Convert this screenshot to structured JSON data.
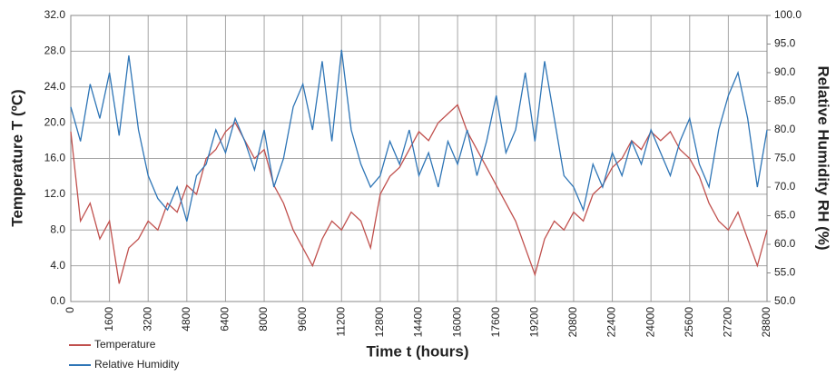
{
  "chart_data": {
    "type": "line",
    "x_label": "Time t (hours)",
    "y_label": "Temperature T (ºC)",
    "y2_label": "Relative Humidity RH (%)",
    "x": [
      0,
      400,
      800,
      1200,
      1600,
      2000,
      2400,
      2800,
      3200,
      3600,
      4000,
      4400,
      4800,
      5200,
      5600,
      6000,
      6400,
      6800,
      7200,
      7600,
      8000,
      8400,
      8800,
      9200,
      9600,
      10000,
      10400,
      10800,
      11200,
      11600,
      12000,
      12400,
      12800,
      13200,
      13600,
      14000,
      14400,
      14800,
      15200,
      15600,
      16000,
      16400,
      16800,
      17200,
      17600,
      18000,
      18400,
      18800,
      19200,
      19600,
      20000,
      20400,
      20800,
      21200,
      21600,
      22000,
      22400,
      22800,
      23200,
      23600,
      24000,
      24400,
      24800,
      25200,
      25600,
      26000,
      26400,
      26800,
      27200,
      27600,
      28000,
      28400,
      28800
    ],
    "series": [
      {
        "name": "Temperature",
        "color": "#c0504d",
        "values": [
          19,
          9,
          11,
          7,
          9,
          2,
          6,
          7,
          9,
          8,
          11,
          10,
          13,
          12,
          16,
          17,
          19,
          20,
          18,
          16,
          17,
          13,
          11,
          8,
          6,
          4,
          7,
          9,
          8,
          10,
          9,
          6,
          12,
          14,
          15,
          17,
          19,
          18,
          20,
          21,
          22,
          19,
          17,
          15,
          13,
          11,
          9,
          6,
          3,
          7,
          9,
          8,
          10,
          9,
          12,
          13,
          15,
          16,
          18,
          17,
          19,
          18,
          19,
          17,
          16,
          14,
          11,
          9,
          8,
          10,
          7,
          4,
          8
        ]
      },
      {
        "name": "Relative Humidity",
        "color": "#2e75b6",
        "axis": "y2",
        "values": [
          84,
          78,
          88,
          82,
          90,
          79,
          93,
          80,
          72,
          68,
          66,
          70,
          64,
          72,
          74,
          80,
          76,
          82,
          78,
          73,
          80,
          70,
          75,
          84,
          88,
          80,
          92,
          78,
          94,
          80,
          74,
          70,
          72,
          78,
          74,
          80,
          72,
          76,
          70,
          78,
          74,
          80,
          72,
          78,
          86,
          76,
          80,
          90,
          78,
          92,
          82,
          72,
          70,
          66,
          74,
          70,
          76,
          72,
          78,
          74,
          80,
          76,
          72,
          78,
          82,
          74,
          70,
          80,
          86,
          90,
          82,
          70,
          80
        ]
      }
    ],
    "xlim": [
      0,
      28800
    ],
    "xticks": [
      0,
      1600,
      3200,
      4800,
      6400,
      8000,
      9600,
      11200,
      12800,
      14400,
      16000,
      17600,
      19200,
      20800,
      22400,
      24000,
      25600,
      27200,
      28800
    ],
    "ylim": [
      0,
      32
    ],
    "yticks": [
      {
        "value": 0,
        "label": "0.0"
      },
      {
        "value": 4,
        "label": "4.0"
      },
      {
        "value": 8,
        "label": "8.0"
      },
      {
        "value": 12,
        "label": "12.0"
      },
      {
        "value": 16,
        "label": "16.0"
      },
      {
        "value": 20,
        "label": "20.0"
      },
      {
        "value": 24,
        "label": "24.0"
      },
      {
        "value": 28,
        "label": "28.0"
      },
      {
        "value": 32,
        "label": "32.0"
      }
    ],
    "y2lim": [
      50,
      100
    ],
    "y2ticks": [
      {
        "value": 50,
        "label": "50.0"
      },
      {
        "value": 55,
        "label": "55.0"
      },
      {
        "value": 60,
        "label": "60.0"
      },
      {
        "value": 65,
        "label": "65.0"
      },
      {
        "value": 70,
        "label": "70.0"
      },
      {
        "value": 75,
        "label": "75.0"
      },
      {
        "value": 80,
        "label": "80.0"
      },
      {
        "value": 85,
        "label": "85.0"
      },
      {
        "value": 90,
        "label": "90.0"
      },
      {
        "value": 95,
        "label": "95.0"
      },
      {
        "value": 100,
        "label": "100.0"
      }
    ],
    "grid": true
  }
}
